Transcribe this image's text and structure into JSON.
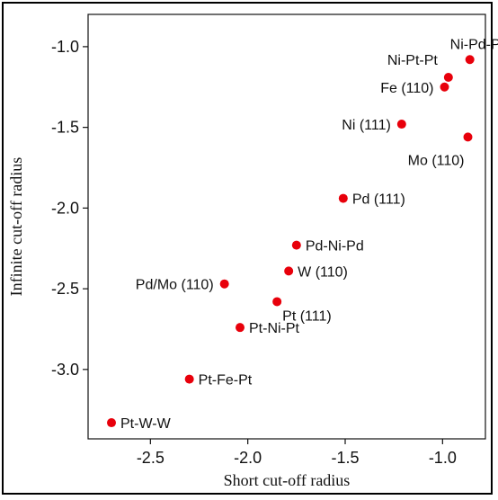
{
  "chart_data": {
    "type": "scatter",
    "xlabel": "Short cut-off radius",
    "ylabel": "Infinite cut-off radius",
    "xlim": [
      -2.82,
      -0.78
    ],
    "ylim": [
      -3.43,
      -0.8
    ],
    "x_ticks": [
      -2.5,
      -2.0,
      -1.5,
      -1.0
    ],
    "y_ticks": [
      -1.0,
      -1.5,
      -2.0,
      -2.5,
      -3.0
    ],
    "x_tick_labels": [
      "-2.5",
      "-2.0",
      "-1.5",
      "-1.0"
    ],
    "y_tick_labels": [
      "-1.0",
      "-1.5",
      "-2.0",
      "-2.5",
      "-3.0"
    ],
    "grid": false,
    "marker_color": "#e8000b",
    "points": [
      {
        "label": "Ni-Pd-Pd",
        "x": -0.86,
        "y": -1.08,
        "label_pos": "above"
      },
      {
        "label": "Ni-Pt-Pt",
        "x": -0.97,
        "y": -1.19,
        "label_pos": "upper-left"
      },
      {
        "label": "Fe (110)",
        "x": -0.99,
        "y": -1.25,
        "label_pos": "left"
      },
      {
        "label": "Ni (111)",
        "x": -1.21,
        "y": -1.48,
        "label_pos": "left"
      },
      {
        "label": "Mo (110)",
        "x": -0.87,
        "y": -1.56,
        "label_pos": "below-left"
      },
      {
        "label": "Pd (111)",
        "x": -1.51,
        "y": -1.94,
        "label_pos": "right"
      },
      {
        "label": "Pd-Ni-Pd",
        "x": -1.75,
        "y": -2.23,
        "label_pos": "right"
      },
      {
        "label": "W (110)",
        "x": -1.79,
        "y": -2.39,
        "label_pos": "right"
      },
      {
        "label": "Pd/Mo (110)",
        "x": -2.12,
        "y": -2.47,
        "label_pos": "left"
      },
      {
        "label": "Pt (111)",
        "x": -1.85,
        "y": -2.58,
        "label_pos": "below-right"
      },
      {
        "label": "Pt-Ni-Pt",
        "x": -2.04,
        "y": -2.74,
        "label_pos": "right"
      },
      {
        "label": "Pt-Fe-Pt",
        "x": -2.3,
        "y": -3.06,
        "label_pos": "right"
      },
      {
        "label": "Pt-W-W",
        "x": -2.7,
        "y": -3.33,
        "label_pos": "right"
      }
    ]
  }
}
